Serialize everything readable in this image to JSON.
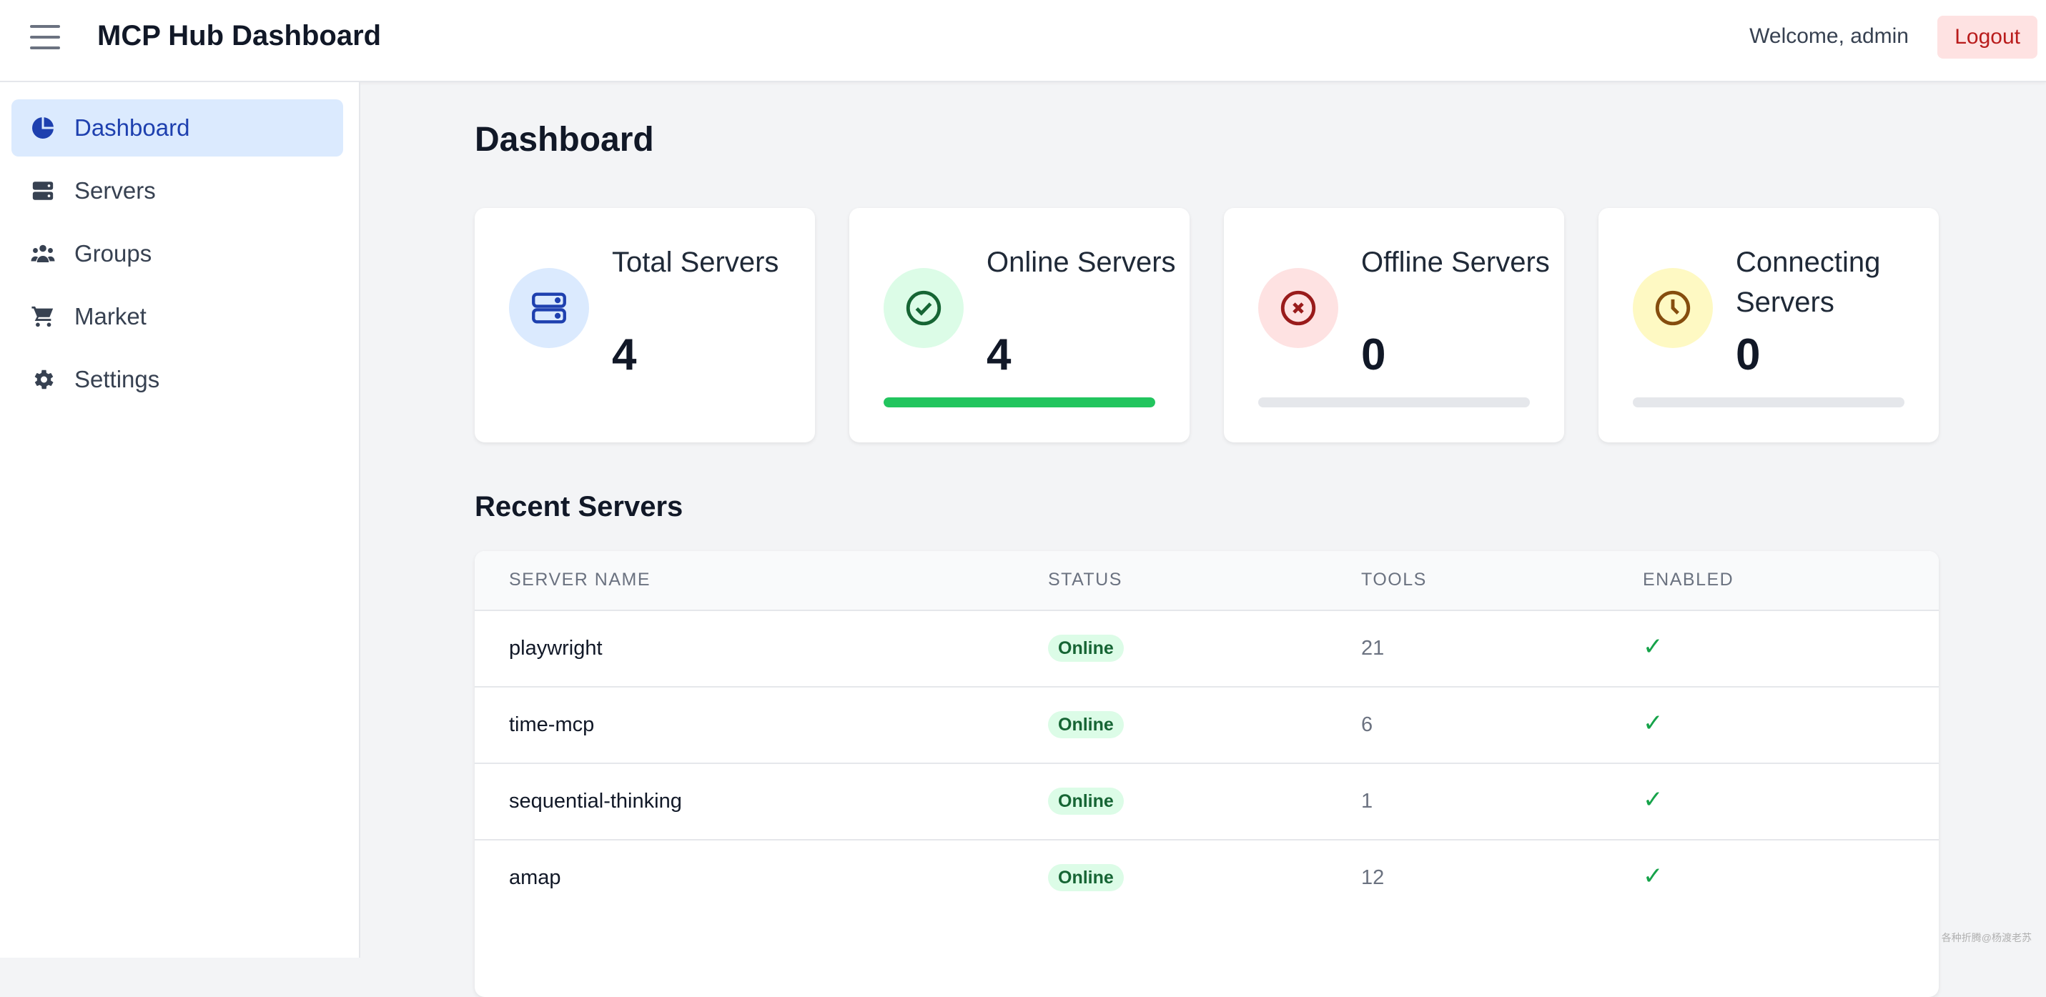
{
  "header": {
    "title": "MCP Hub Dashboard",
    "welcome": "Welcome, admin",
    "logout_label": "Logout"
  },
  "sidebar": {
    "items": [
      {
        "label": "Dashboard",
        "icon": "pie-chart-icon",
        "active": true
      },
      {
        "label": "Servers",
        "icon": "server-icon",
        "active": false
      },
      {
        "label": "Groups",
        "icon": "users-icon",
        "active": false
      },
      {
        "label": "Market",
        "icon": "cart-icon",
        "active": false
      },
      {
        "label": "Settings",
        "icon": "gear-icon",
        "active": false
      }
    ]
  },
  "main": {
    "title": "Dashboard",
    "cards": [
      {
        "label": "Total Servers",
        "value": "4",
        "icon": "server-icon",
        "color": "#1e40af",
        "bg": "#dbeafe",
        "progress": null
      },
      {
        "label": "Online Servers",
        "value": "4",
        "icon": "check-circle-icon",
        "color": "#166534",
        "bg": "#dcfce7",
        "progress": 1.0,
        "bar_color": "#22c55e"
      },
      {
        "label": "Offline Servers",
        "value": "0",
        "icon": "x-circle-icon",
        "color": "#991b1b",
        "bg": "#fee2e2",
        "progress": 0,
        "bar_color": "#ef4444"
      },
      {
        "label": "Connecting Servers",
        "value": "0",
        "icon": "clock-icon",
        "color": "#854d0e",
        "bg": "#fef9c3",
        "progress": 0,
        "bar_color": "#eab308"
      }
    ],
    "recent_title": "Recent Servers",
    "table": {
      "columns": [
        "SERVER NAME",
        "STATUS",
        "TOOLS",
        "ENABLED"
      ],
      "rows": [
        {
          "name": "playwright",
          "status": "Online",
          "tools": "21",
          "enabled": "✓"
        },
        {
          "name": "time-mcp",
          "status": "Online",
          "tools": "6",
          "enabled": "✓"
        },
        {
          "name": "sequential-thinking",
          "status": "Online",
          "tools": "1",
          "enabled": "✓"
        },
        {
          "name": "amap",
          "status": "Online",
          "tools": "12",
          "enabled": "✓"
        }
      ]
    }
  },
  "watermark": "各种折腾@杨渡老苏",
  "colors": {
    "accent": "#1e40af",
    "active_bg": "#dbeafe",
    "success": "#16a34a",
    "danger": "#b91c1c"
  }
}
